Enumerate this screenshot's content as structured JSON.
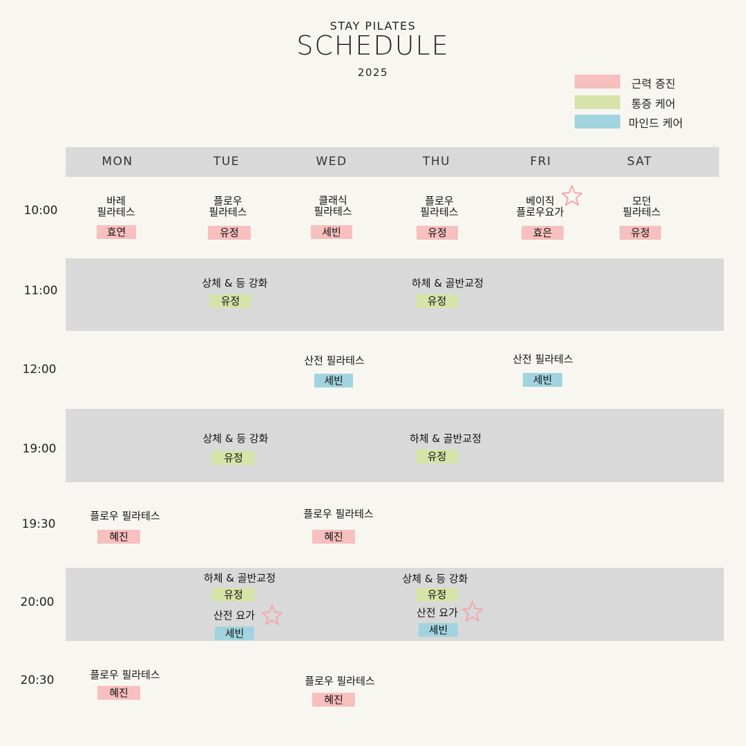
{
  "header": {
    "brand": "STAY PILATES",
    "title": "SCHEDULE",
    "year": "2025"
  },
  "colors": {
    "strength": "#f7bfbe",
    "pain": "#d8e3a9",
    "mind": "#a1d4df",
    "band": "#d9d9d9",
    "background": "#f8f6f1",
    "star": "#f2a9ad"
  },
  "legend": [
    {
      "label": "근력 증진",
      "category": "strength"
    },
    {
      "label": "통증 케어",
      "category": "pain"
    },
    {
      "label": "마인드 케어",
      "category": "mind"
    }
  ],
  "days": [
    "MON",
    "TUE",
    "WED",
    "THU",
    "FRI",
    "SAT"
  ],
  "times": [
    "10:00",
    "11:00",
    "12:00",
    "19:00",
    "19:30",
    "20:00",
    "20:30"
  ],
  "classes": [
    {
      "name": "바레\n필라테스",
      "instructor": "효연",
      "category": "strength"
    },
    {
      "name": "플로우\n필라테스",
      "instructor": "유정",
      "category": "strength"
    },
    {
      "name": "클래식\n필라테스",
      "instructor": "세빈",
      "category": "strength"
    },
    {
      "name": "플로우\n필라테스",
      "instructor": "유정",
      "category": "strength"
    },
    {
      "name": "베이직\n플로우요가",
      "instructor": "효은",
      "category": "strength"
    },
    {
      "name": "모던\n필라테스",
      "instructor": "유정",
      "category": "strength"
    },
    {
      "name": "상체 & 등 강화",
      "instructor": "유정",
      "category": "pain"
    },
    {
      "name": "하체 & 골반교정",
      "instructor": "유정",
      "category": "pain"
    },
    {
      "name": "산전 필라테스",
      "instructor": "세빈",
      "category": "mind"
    },
    {
      "name": "산전 필라테스",
      "instructor": "세빈",
      "category": "mind"
    },
    {
      "name": "상체 & 등 강화",
      "instructor": "유정",
      "category": "pain"
    },
    {
      "name": "하체 & 골반교정",
      "instructor": "유정",
      "category": "pain"
    },
    {
      "name": "플로우 필라테스",
      "instructor": "혜진",
      "category": "strength"
    },
    {
      "name": "플로우 필라테스",
      "instructor": "혜진",
      "category": "strength"
    },
    {
      "name": "하체 & 골반교정",
      "instructor": "유정",
      "category": "pain"
    },
    {
      "name": "산전 요가",
      "instructor": "세빈",
      "category": "mind"
    },
    {
      "name": "상체 & 등 강화",
      "instructor": "유정",
      "category": "pain"
    },
    {
      "name": "산전 요가",
      "instructor": "세빈",
      "category": "mind"
    },
    {
      "name": "플로우 필라테스",
      "instructor": "혜진",
      "category": "strength"
    },
    {
      "name": "플로우 필라테스",
      "instructor": "혜진",
      "category": "strength"
    }
  ]
}
